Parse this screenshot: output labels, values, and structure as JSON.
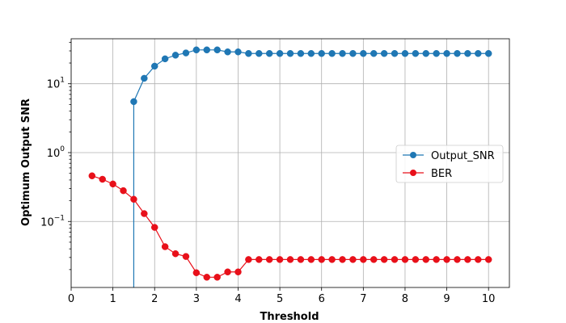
{
  "chart_data": {
    "type": "line",
    "xlabel": "Threshold",
    "ylabel": "Optimum Output SNR",
    "yscale": "log",
    "xlim": [
      0,
      10.5
    ],
    "ylim": [
      0.011,
      45
    ],
    "grid": true,
    "legend_position": "center-right",
    "x_ticks": [
      0,
      1,
      2,
      3,
      4,
      5,
      6,
      7,
      8,
      9,
      10
    ],
    "x_tick_labels": [
      "0",
      "1",
      "2",
      "3",
      "4",
      "5",
      "6",
      "7",
      "8",
      "9",
      "10"
    ],
    "y_ticks": [
      0.1,
      1,
      10
    ],
    "y_tick_labels": [
      {
        "base": "10",
        "exp": "−1"
      },
      {
        "base": "10",
        "exp": "0"
      },
      {
        "base": "10",
        "exp": "1"
      }
    ],
    "series": [
      {
        "name": "Output_SNR",
        "color": "#1f77b4",
        "marker": "circle",
        "drop_to_axis_at_x": 1.5,
        "x": [
          1.5,
          1.75,
          2.0,
          2.25,
          2.5,
          2.75,
          3.0,
          3.25,
          3.5,
          3.75,
          4.0,
          4.25,
          4.5,
          4.75,
          5.0,
          5.25,
          5.5,
          5.75,
          6.0,
          6.25,
          6.5,
          6.75,
          7.0,
          7.25,
          7.5,
          7.75,
          8.0,
          8.25,
          8.5,
          8.75,
          9.0,
          9.25,
          9.5,
          9.75,
          10.0
        ],
        "y": [
          5.5,
          12,
          18,
          23,
          26,
          28,
          31,
          31,
          31,
          29,
          29,
          27.5,
          27.5,
          27.5,
          27.5,
          27.5,
          27.5,
          27.5,
          27.5,
          27.5,
          27.5,
          27.5,
          27.5,
          27.5,
          27.5,
          27.5,
          27.5,
          27.5,
          27.5,
          27.5,
          27.5,
          27.5,
          27.5,
          27.5,
          27.5
        ]
      },
      {
        "name": "BER",
        "color": "#e8101a",
        "marker": "circle",
        "x": [
          0.5,
          0.75,
          1.0,
          1.25,
          1.5,
          1.75,
          2.0,
          2.25,
          2.5,
          2.75,
          3.0,
          3.25,
          3.5,
          3.75,
          4.0,
          4.25,
          4.5,
          4.75,
          5.0,
          5.25,
          5.5,
          5.75,
          6.0,
          6.25,
          6.5,
          6.75,
          7.0,
          7.25,
          7.5,
          7.75,
          8.0,
          8.25,
          8.5,
          8.75,
          9.0,
          9.25,
          9.5,
          9.75,
          10.0
        ],
        "y": [
          0.46,
          0.41,
          0.35,
          0.28,
          0.21,
          0.13,
          0.082,
          0.043,
          0.034,
          0.031,
          0.018,
          0.0155,
          0.0155,
          0.0185,
          0.0185,
          0.028,
          0.028,
          0.028,
          0.028,
          0.028,
          0.028,
          0.028,
          0.028,
          0.028,
          0.028,
          0.028,
          0.028,
          0.028,
          0.028,
          0.028,
          0.028,
          0.028,
          0.028,
          0.028,
          0.028,
          0.028,
          0.028,
          0.028,
          0.028
        ]
      }
    ]
  }
}
